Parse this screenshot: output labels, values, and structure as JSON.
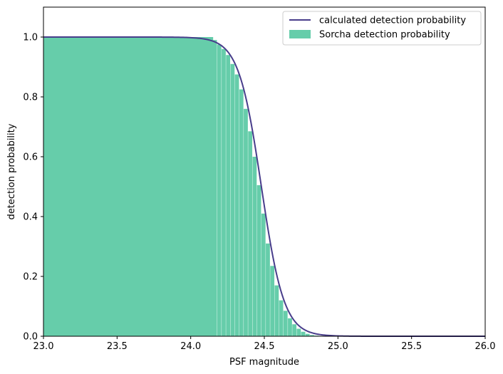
{
  "chart_data": {
    "type": "bar",
    "title": "",
    "xlabel": "PSF magnitude",
    "ylabel": "detection probability",
    "xlim": [
      23.0,
      26.0
    ],
    "ylim": [
      0.0,
      1.1
    ],
    "xticks": [
      "23.0",
      "23.5",
      "24.0",
      "24.5",
      "25.0",
      "25.5",
      "26.0"
    ],
    "yticks": [
      "0.0",
      "0.2",
      "0.4",
      "0.6",
      "0.8",
      "1.0"
    ],
    "grid": false,
    "legend_position": "top-right",
    "series": [
      {
        "name": "calculated detection probability",
        "kind": "line",
        "color": "#483d8b",
        "description_model": "logistic",
        "m50": 24.48,
        "width": 0.077
      },
      {
        "name": "Sorcha detection probability",
        "kind": "histogram",
        "color": "#66cdaa",
        "bin_width": 0.03,
        "bins": [
          [
            24.15,
            0.99
          ],
          [
            24.18,
            0.975
          ],
          [
            24.21,
            0.96
          ],
          [
            24.24,
            0.94
          ],
          [
            24.27,
            0.91
          ],
          [
            24.3,
            0.875
          ],
          [
            24.33,
            0.825
          ],
          [
            24.36,
            0.76
          ],
          [
            24.39,
            0.685
          ],
          [
            24.42,
            0.6
          ],
          [
            24.45,
            0.505
          ],
          [
            24.48,
            0.41
          ],
          [
            24.51,
            0.31
          ],
          [
            24.54,
            0.235
          ],
          [
            24.57,
            0.17
          ],
          [
            24.6,
            0.12
          ],
          [
            24.63,
            0.085
          ],
          [
            24.66,
            0.06
          ],
          [
            24.69,
            0.04
          ],
          [
            24.72,
            0.025
          ],
          [
            24.75,
            0.015
          ],
          [
            24.78,
            0.008
          ],
          [
            24.81,
            0.004
          ],
          [
            24.84,
            0.002
          ],
          [
            24.87,
            0.001
          ],
          [
            24.9,
            0.0
          ]
        ],
        "plateau_from": 23.0,
        "plateau_value": 1.0
      }
    ]
  }
}
